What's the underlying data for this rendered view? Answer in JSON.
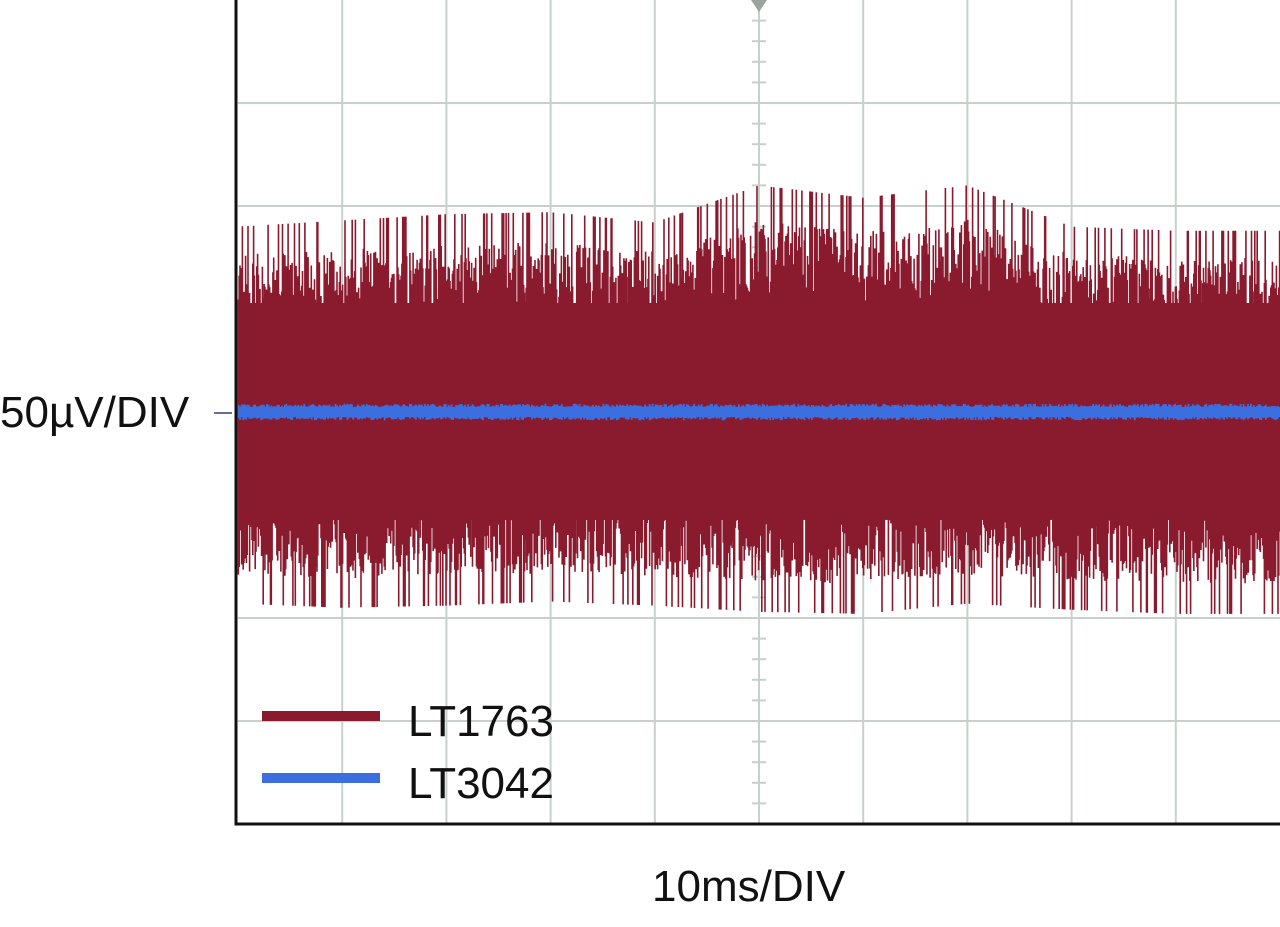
{
  "chart_data": {
    "type": "line",
    "ylabel": "50µV/DIV",
    "xlabel": "10ms/DIV",
    "xlim": [
      0,
      100
    ],
    "ylim": [
      -200,
      200
    ],
    "grid": true,
    "x_divisions": 10,
    "y_divisions": 8,
    "legend_position": "bottom-left",
    "series": [
      {
        "name": "LT1763",
        "color": "#8a1a2e",
        "envelope_x": [
          0,
          10,
          20,
          30,
          40,
          50,
          60,
          70,
          80,
          90,
          100
        ],
        "envelope_max": [
          90,
          93,
          96,
          97,
          92,
          110,
          104,
          110,
          90,
          88,
          88
        ],
        "envelope_min": [
          -93,
          -95,
          -94,
          -92,
          -94,
          -97,
          -98,
          -93,
          -96,
          -98,
          -98
        ]
      },
      {
        "name": "LT3042",
        "color": "#3b6fe0",
        "envelope_x": [
          0,
          50,
          100
        ],
        "envelope_max": [
          4,
          4,
          4
        ],
        "envelope_min": [
          -4,
          -4,
          -4
        ]
      }
    ]
  },
  "colors": {
    "grid": "#c9d0cc",
    "frame": "#111111",
    "background": "#ffffff"
  }
}
